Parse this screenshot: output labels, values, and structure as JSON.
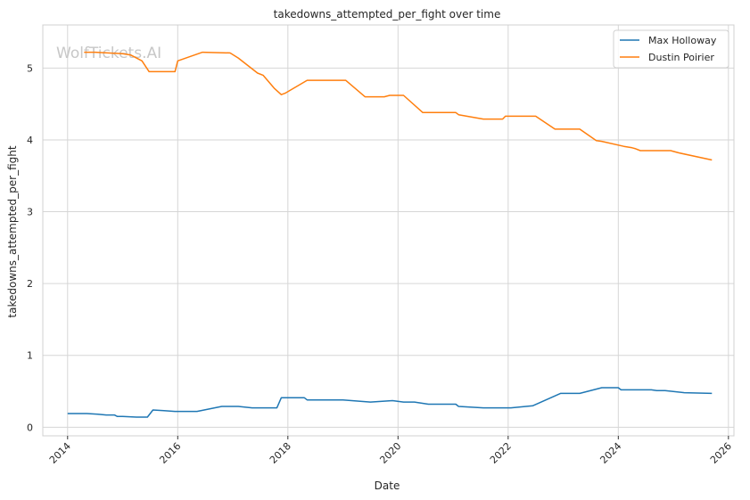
{
  "watermark": "WolfTickets.AI",
  "chart_data": {
    "type": "line",
    "title": "takedowns_attempted_per_fight over time",
    "xlabel": "Date",
    "ylabel": "takedowns_attempted_per_fight",
    "xlim": [
      2013.55,
      2026.1
    ],
    "ylim": [
      -0.12,
      5.6
    ],
    "x_ticks": [
      2014,
      2016,
      2018,
      2020,
      2022,
      2024,
      2026
    ],
    "y_ticks": [
      0,
      1,
      2,
      3,
      4,
      5
    ],
    "grid": true,
    "legend_position": "top-right",
    "series": [
      {
        "name": "Max Holloway",
        "color": "#1f77b4",
        "points": [
          [
            2014.0,
            0.19
          ],
          [
            2014.35,
            0.19
          ],
          [
            2014.55,
            0.18
          ],
          [
            2014.7,
            0.17
          ],
          [
            2014.75,
            0.17
          ],
          [
            2014.85,
            0.17
          ],
          [
            2014.9,
            0.15
          ],
          [
            2015.0,
            0.15
          ],
          [
            2015.25,
            0.14
          ],
          [
            2015.45,
            0.14
          ],
          [
            2015.55,
            0.24
          ],
          [
            2015.75,
            0.23
          ],
          [
            2015.95,
            0.22
          ],
          [
            2016.35,
            0.22
          ],
          [
            2016.8,
            0.29
          ],
          [
            2017.1,
            0.29
          ],
          [
            2017.35,
            0.27
          ],
          [
            2017.8,
            0.27
          ],
          [
            2017.88,
            0.41
          ],
          [
            2018.3,
            0.41
          ],
          [
            2018.35,
            0.38
          ],
          [
            2019.0,
            0.38
          ],
          [
            2019.5,
            0.35
          ],
          [
            2019.9,
            0.37
          ],
          [
            2020.1,
            0.35
          ],
          [
            2020.3,
            0.35
          ],
          [
            2020.55,
            0.32
          ],
          [
            2021.05,
            0.32
          ],
          [
            2021.1,
            0.29
          ],
          [
            2021.55,
            0.27
          ],
          [
            2022.05,
            0.27
          ],
          [
            2022.45,
            0.3
          ],
          [
            2022.95,
            0.47
          ],
          [
            2023.3,
            0.47
          ],
          [
            2023.7,
            0.55
          ],
          [
            2024.0,
            0.55
          ],
          [
            2024.05,
            0.52
          ],
          [
            2024.6,
            0.52
          ],
          [
            2024.7,
            0.51
          ],
          [
            2024.85,
            0.51
          ],
          [
            2025.2,
            0.48
          ],
          [
            2025.7,
            0.47
          ]
        ]
      },
      {
        "name": "Dustin Poirier",
        "color": "#ff7f0e",
        "points": [
          [
            2014.3,
            5.22
          ],
          [
            2014.5,
            5.22
          ],
          [
            2015.0,
            5.2
          ],
          [
            2015.15,
            5.18
          ],
          [
            2015.3,
            5.12
          ],
          [
            2015.35,
            5.1
          ],
          [
            2015.48,
            4.95
          ],
          [
            2015.95,
            4.95
          ],
          [
            2016.0,
            5.1
          ],
          [
            2016.45,
            5.22
          ],
          [
            2016.95,
            5.21
          ],
          [
            2017.1,
            5.14
          ],
          [
            2017.45,
            4.93
          ],
          [
            2017.55,
            4.9
          ],
          [
            2017.75,
            4.72
          ],
          [
            2017.88,
            4.63
          ],
          [
            2017.95,
            4.65
          ],
          [
            2018.35,
            4.83
          ],
          [
            2019.05,
            4.83
          ],
          [
            2019.4,
            4.6
          ],
          [
            2019.75,
            4.6
          ],
          [
            2019.85,
            4.62
          ],
          [
            2020.1,
            4.62
          ],
          [
            2020.45,
            4.38
          ],
          [
            2021.05,
            4.38
          ],
          [
            2021.1,
            4.35
          ],
          [
            2021.55,
            4.29
          ],
          [
            2021.9,
            4.29
          ],
          [
            2021.95,
            4.33
          ],
          [
            2022.5,
            4.33
          ],
          [
            2022.85,
            4.15
          ],
          [
            2023.3,
            4.15
          ],
          [
            2023.6,
            3.99
          ],
          [
            2023.7,
            3.98
          ],
          [
            2024.1,
            3.91
          ],
          [
            2024.25,
            3.89
          ],
          [
            2024.3,
            3.88
          ],
          [
            2024.4,
            3.85
          ],
          [
            2024.95,
            3.85
          ],
          [
            2025.1,
            3.82
          ],
          [
            2025.7,
            3.72
          ]
        ]
      }
    ]
  }
}
